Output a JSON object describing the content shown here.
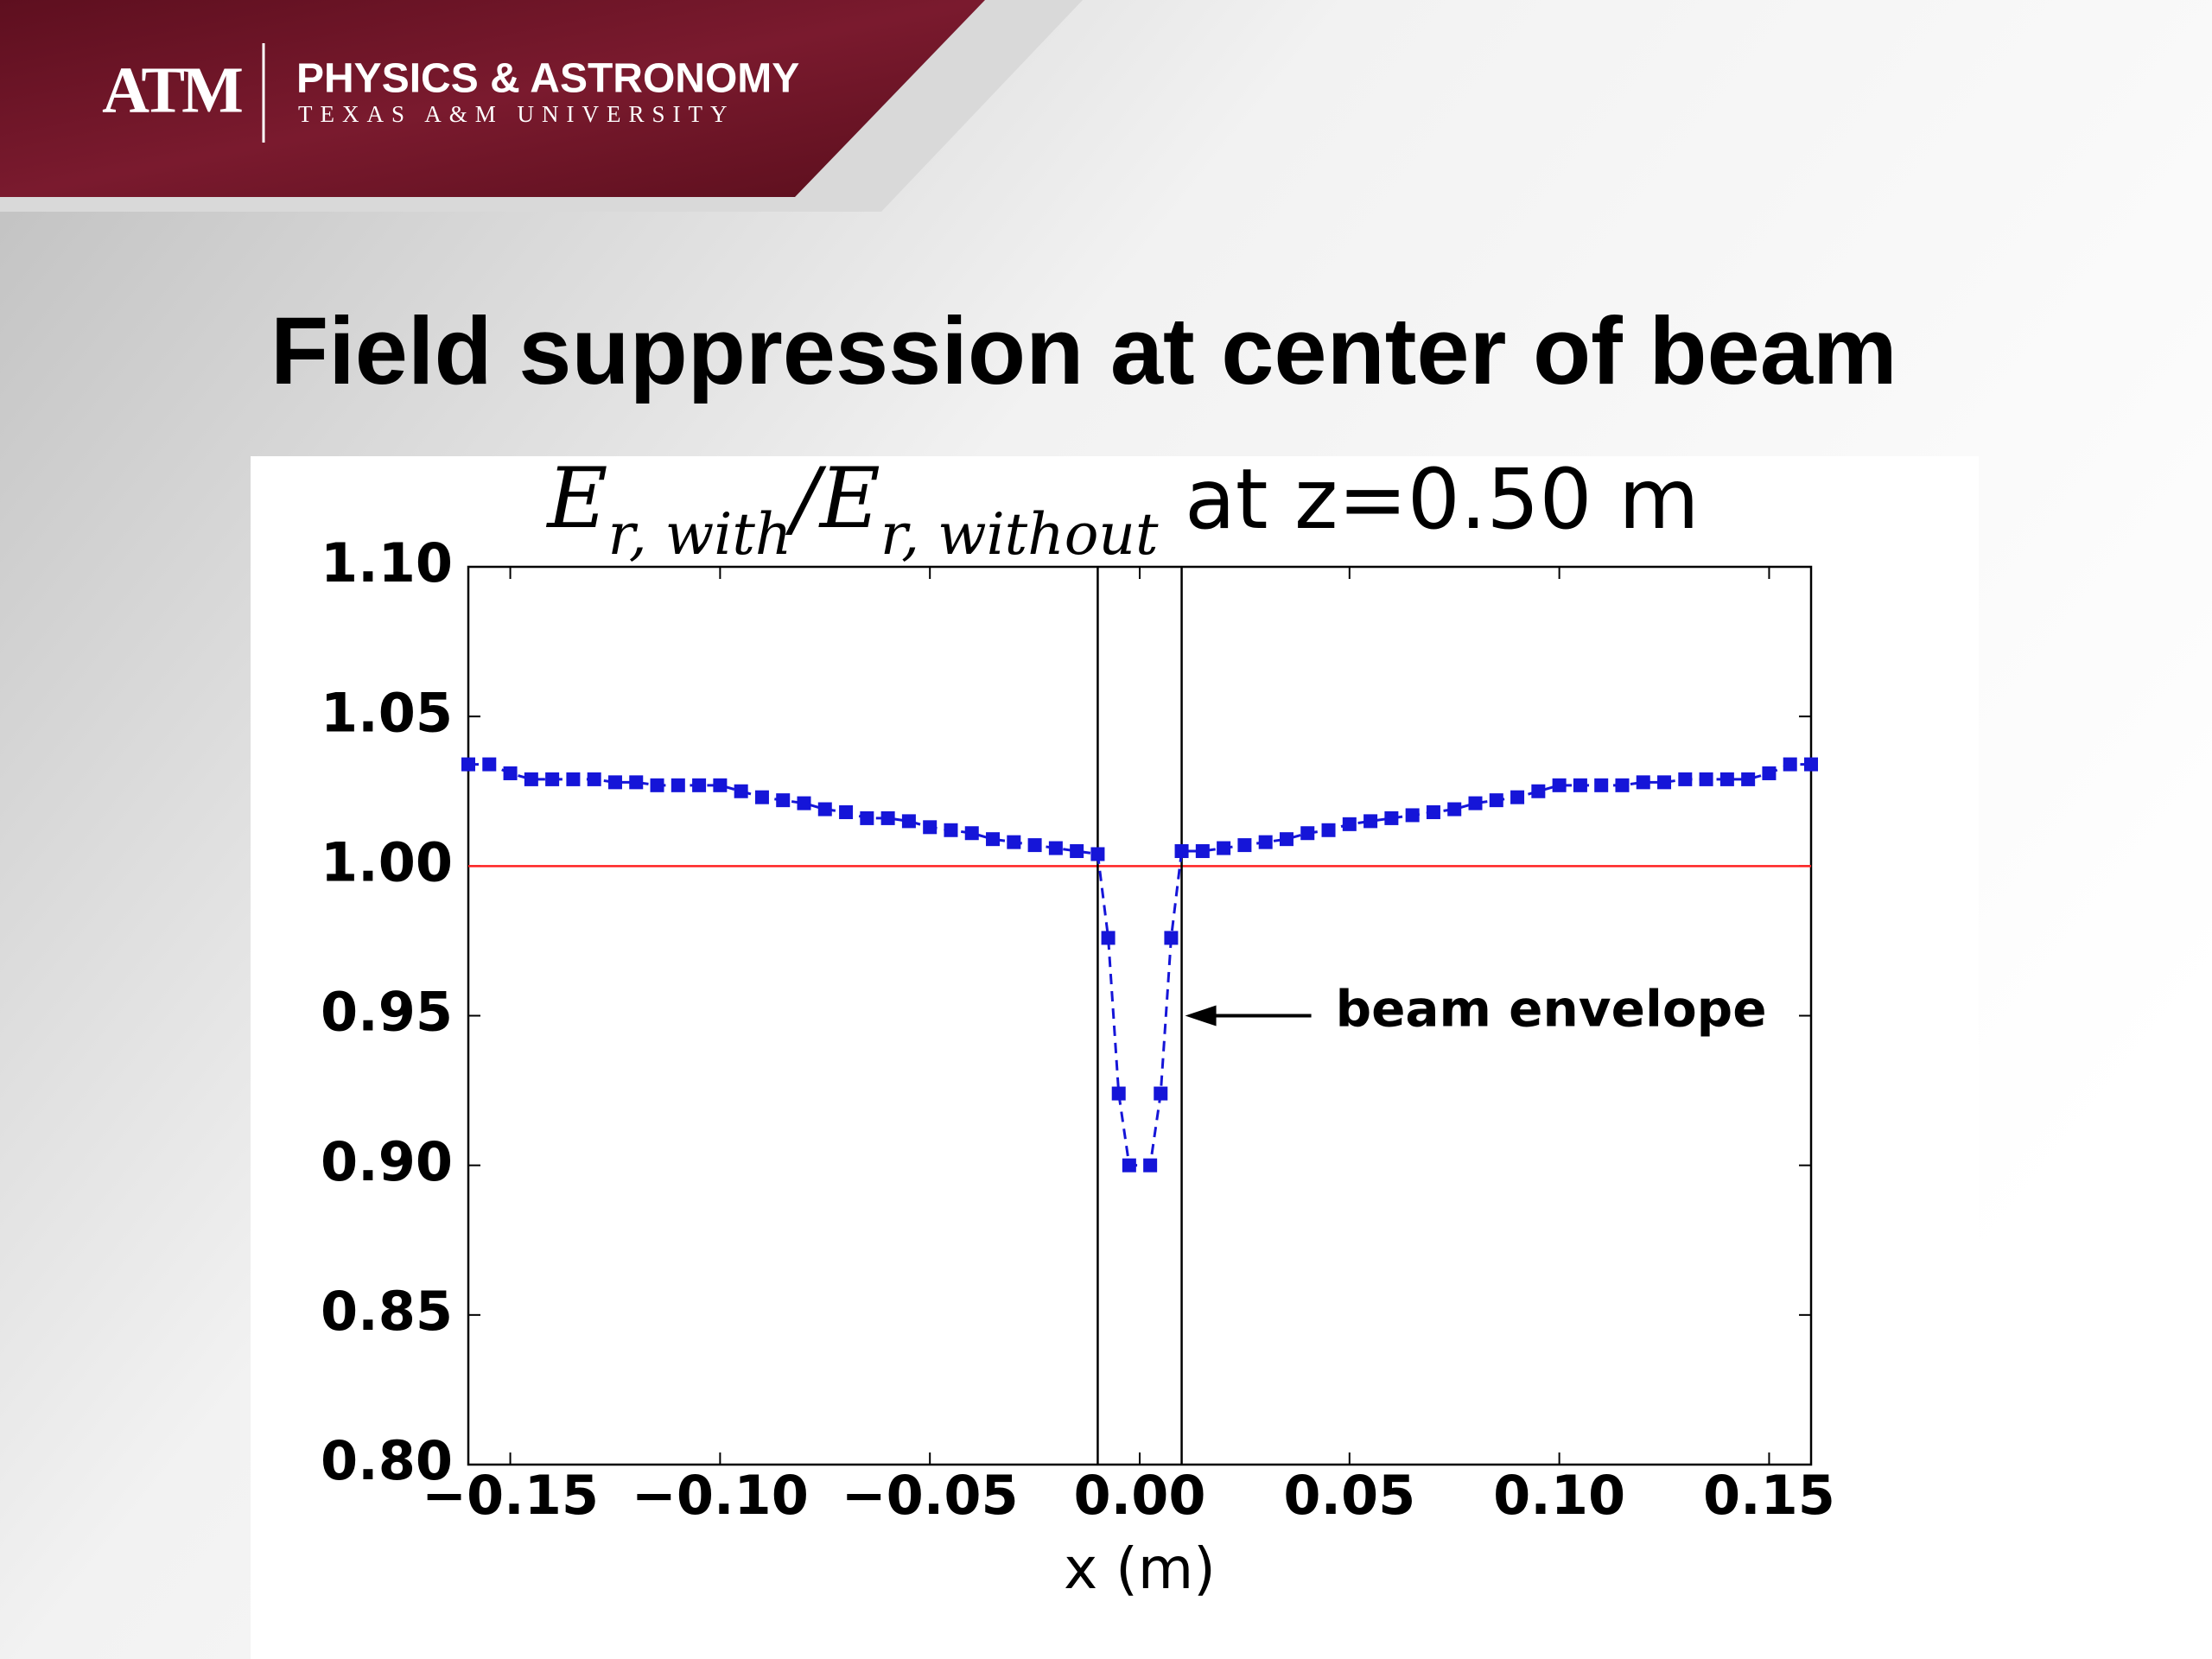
{
  "header": {
    "logo": "ATM",
    "department": "PHYSICS & ASTRONOMY",
    "university": "TEXAS A&M UNIVERSITY"
  },
  "slide_title": "Field suppression at center of beam",
  "chart_data": {
    "type": "line",
    "title": [
      {
        "text": "E",
        "math": true
      },
      {
        "text": "r, with",
        "math": true,
        "sub": true
      },
      {
        "text": "/E",
        "math": true
      },
      {
        "text": "r, without",
        "math": true,
        "sub": true
      },
      {
        "text": " at z=0.50 m"
      }
    ],
    "x_label": "x (m)",
    "x": [
      -0.16,
      -0.155,
      -0.15,
      -0.145,
      -0.14,
      -0.135,
      -0.13,
      -0.125,
      -0.12,
      -0.115,
      -0.11,
      -0.105,
      -0.1,
      -0.095,
      -0.09,
      -0.085,
      -0.08,
      -0.075,
      -0.07,
      -0.065,
      -0.06,
      -0.055,
      -0.05,
      -0.045,
      -0.04,
      -0.035,
      -0.03,
      -0.025,
      -0.02,
      -0.015,
      -0.01,
      -0.0075,
      -0.005,
      -0.0025,
      0.0025,
      0.005,
      0.0075,
      0.01,
      0.015,
      0.02,
      0.025,
      0.03,
      0.035,
      0.04,
      0.045,
      0.05,
      0.055,
      0.06,
      0.065,
      0.07,
      0.075,
      0.08,
      0.085,
      0.09,
      0.095,
      0.1,
      0.105,
      0.11,
      0.115,
      0.12,
      0.125,
      0.13,
      0.135,
      0.14,
      0.145,
      0.15,
      0.155,
      0.16
    ],
    "values": [
      1.034,
      1.034,
      1.031,
      1.029,
      1.029,
      1.029,
      1.029,
      1.028,
      1.028,
      1.027,
      1.027,
      1.027,
      1.027,
      1.025,
      1.023,
      1.022,
      1.021,
      1.019,
      1.018,
      1.016,
      1.016,
      1.015,
      1.013,
      1.012,
      1.011,
      1.009,
      1.008,
      1.007,
      1.006,
      1.005,
      1.004,
      0.976,
      0.924,
      0.9,
      0.9,
      0.924,
      0.976,
      1.005,
      1.005,
      1.006,
      1.007,
      1.008,
      1.009,
      1.011,
      1.012,
      1.014,
      1.015,
      1.016,
      1.017,
      1.018,
      1.019,
      1.021,
      1.022,
      1.023,
      1.025,
      1.027,
      1.027,
      1.027,
      1.027,
      1.028,
      1.028,
      1.029,
      1.029,
      1.029,
      1.029,
      1.031,
      1.034,
      1.034
    ],
    "color": "#1515d8",
    "linestyle": "dashed",
    "marker": "square",
    "hline": {
      "y": 1.0,
      "color": "#ff2020"
    },
    "vlines": {
      "x": [
        -0.01,
        0.01
      ],
      "color": "#000000"
    },
    "annotations": [
      {
        "text": "beam envelope",
        "xy": [
          0.01,
          0.95
        ]
      }
    ],
    "xlim": [
      -0.16,
      0.16
    ],
    "ylim": [
      0.8,
      1.1
    ],
    "xticks": [
      {
        "value": -0.15,
        "label": "−0.15"
      },
      {
        "value": -0.1,
        "label": "−0.10"
      },
      {
        "value": -0.05,
        "label": "−0.05"
      },
      {
        "value": 0,
        "label": "0.00"
      },
      0.05,
      {
        "value": 0.1,
        "label": "0.10"
      },
      0.15
    ],
    "yticks": [
      {
        "value": 0.8,
        "label": "0.80"
      },
      0.85,
      {
        "value": 0.9,
        "label": "0.90"
      },
      0.95,
      {
        "value": 1.0,
        "label": "1.00"
      },
      1.05,
      {
        "value": 1.1,
        "label": "1.10"
      }
    ],
    "grid": false
  }
}
